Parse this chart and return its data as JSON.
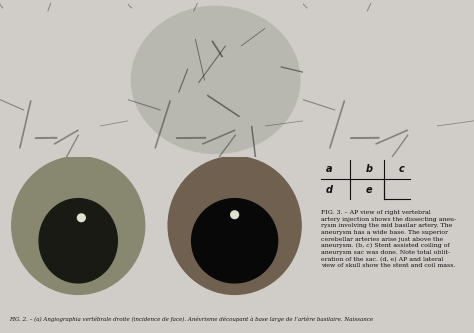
{
  "figure_title": "Fig. 3. – AP view of right vertebral artery injection shows the dissecting aneu-rysm involving the mid basilar artery. The aneurysm has a wide base. The superior cerebellar arteries arise just above the aneurysm. (b, c) Stent assisted coiling of aneurysm sac was done. Note total oblit-eration of the sac. (d, e) AP and lateral view of skull show the stent and coil mass.",
  "bottom_caption": "FIG. 2. – (a) Angiographia vertébrale droite (incidence de face). Anévrisme découpant à base large de l'artère basilaire. Naisance",
  "grid_labels": [
    [
      "a",
      "b",
      "c"
    ],
    [
      "d",
      "e",
      ""
    ]
  ],
  "bg_color": "#d0cdc8",
  "panel_bg_top": "#a0a09a",
  "panel_bg_bottom": "#303030",
  "text_color": "#1a1a1a",
  "caption_color": "#2a2a2a",
  "figsize": [
    4.74,
    3.33
  ],
  "dpi": 100
}
